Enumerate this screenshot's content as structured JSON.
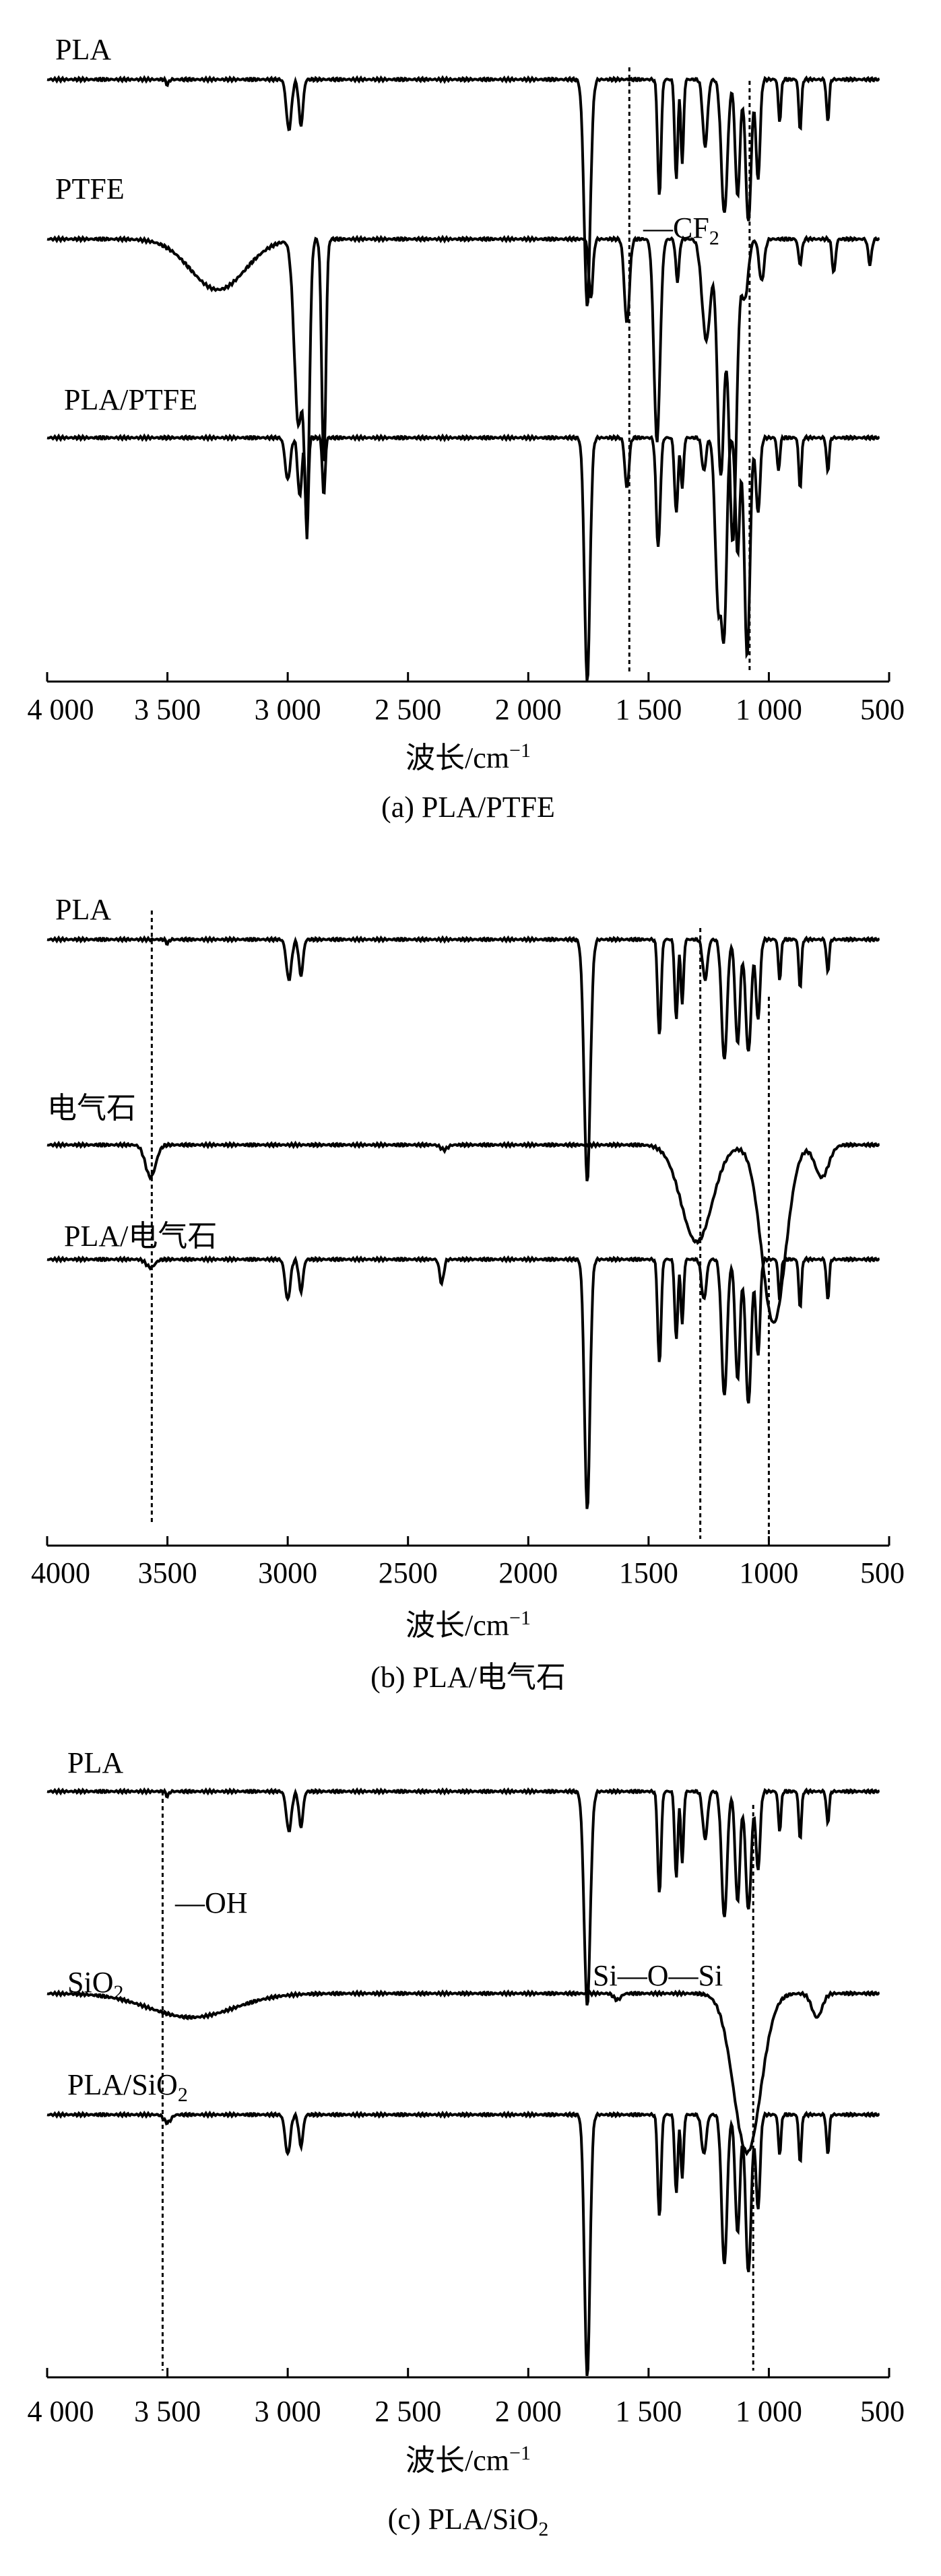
{
  "chart_data": [
    {
      "type": "line",
      "xlim": [
        4000,
        500
      ],
      "x_reversed": true,
      "xlabel_main": "波长/cm",
      "xlabel_sup": "−1",
      "xticks": [
        4000,
        3500,
        3000,
        2500,
        2000,
        1500,
        1000,
        500
      ],
      "xtick_labels": [
        "4 000",
        "3 500",
        "3 000",
        "2 500",
        "2 000",
        "1 500",
        "1 000",
        "500"
      ],
      "caption_parts": [
        "(a) PLA/PTFE"
      ],
      "y_axis": "none",
      "series_labels": [
        "PLA",
        "PTFE",
        "PLA/PTFE"
      ],
      "series": [
        {
          "name": "PLA",
          "baseline": 0.05,
          "peaks": [
            [
              3500,
              0.006,
              8
            ],
            [
              2995,
              0.06,
              15
            ],
            [
              2945,
              0.055,
              12
            ],
            [
              1755,
              0.27,
              18
            ],
            [
              1455,
              0.14,
              10
            ],
            [
              1385,
              0.12,
              9
            ],
            [
              1360,
              0.1,
              8
            ],
            [
              1265,
              0.08,
              14
            ],
            [
              1185,
              0.16,
              18
            ],
            [
              1130,
              0.14,
              14
            ],
            [
              1085,
              0.17,
              16
            ],
            [
              1045,
              0.12,
              12
            ],
            [
              955,
              0.05,
              8
            ],
            [
              870,
              0.06,
              8
            ],
            [
              755,
              0.05,
              8
            ]
          ]
        },
        {
          "name": "PTFE",
          "baseline": 0.05,
          "peaks": [
            [
              3290,
              0.06,
              160
            ],
            [
              2955,
              0.22,
              25
            ],
            [
              2920,
              0.3,
              15
            ],
            [
              2850,
              0.27,
              12
            ],
            [
              1740,
              0.07,
              12
            ],
            [
              1590,
              0.1,
              15
            ],
            [
              1465,
              0.24,
              18
            ],
            [
              1380,
              0.05,
              10
            ],
            [
              1260,
              0.12,
              25
            ],
            [
              1200,
              0.28,
              20
            ],
            [
              1150,
              0.36,
              22
            ],
            [
              1100,
              0.07,
              20
            ],
            [
              1030,
              0.05,
              15
            ],
            [
              870,
              0.03,
              10
            ],
            [
              730,
              0.04,
              10
            ],
            [
              580,
              0.03,
              10
            ]
          ]
        },
        {
          "name": "PLA/PTFE",
          "baseline": 0.06,
          "peaks": [
            [
              3000,
              0.05,
              15
            ],
            [
              2950,
              0.07,
              12
            ],
            [
              2920,
              0.12,
              8
            ],
            [
              2850,
              0.07,
              8
            ],
            [
              1755,
              0.29,
              16
            ],
            [
              1590,
              0.06,
              12
            ],
            [
              1460,
              0.13,
              12
            ],
            [
              1385,
              0.09,
              10
            ],
            [
              1360,
              0.06,
              8
            ],
            [
              1270,
              0.04,
              12
            ],
            [
              1210,
              0.2,
              18
            ],
            [
              1185,
              0.21,
              14
            ],
            [
              1130,
              0.14,
              12
            ],
            [
              1090,
              0.26,
              16
            ],
            [
              1045,
              0.09,
              12
            ],
            [
              960,
              0.04,
              8
            ],
            [
              870,
              0.06,
              8
            ],
            [
              755,
              0.04,
              8
            ]
          ]
        }
      ],
      "reference_lines": [
        1580,
        1080
      ],
      "annotations_parts": [
        "—CF",
        "2"
      ]
    },
    {
      "type": "line",
      "xlim": [
        4000,
        500
      ],
      "x_reversed": true,
      "xlabel_main": "波长/cm",
      "xlabel_sup": "−1",
      "xticks": [
        4000,
        3500,
        3000,
        2500,
        2000,
        1500,
        1000,
        500
      ],
      "xtick_labels": [
        "4000",
        "3500",
        "3000",
        "2500",
        "2000",
        "1500",
        "1000",
        "500"
      ],
      "caption_parts": [
        "(b) PLA/电气石"
      ],
      "y_axis": "none",
      "series_labels": [
        "PLA",
        "电气石",
        "PLA/电气石"
      ],
      "series": [
        {
          "name": "PLA",
          "baseline": 0.05,
          "peaks": [
            [
              3500,
              0.005,
              8
            ],
            [
              2995,
              0.05,
              15
            ],
            [
              2945,
              0.045,
              12
            ],
            [
              1755,
              0.3,
              18
            ],
            [
              1455,
              0.12,
              10
            ],
            [
              1385,
              0.1,
              9
            ],
            [
              1360,
              0.08,
              8
            ],
            [
              1265,
              0.05,
              14
            ],
            [
              1185,
              0.15,
              16
            ],
            [
              1130,
              0.13,
              14
            ],
            [
              1085,
              0.14,
              16
            ],
            [
              1045,
              0.1,
              12
            ],
            [
              955,
              0.05,
              8
            ],
            [
              870,
              0.06,
              8
            ],
            [
              755,
              0.04,
              8
            ]
          ]
        },
        {
          "name": "电气石",
          "baseline": 0.05,
          "peaks": [
            [
              3570,
              0.04,
              30
            ],
            [
              2350,
              0.006,
              20
            ],
            [
              1300,
              0.12,
              90
            ],
            [
              980,
              0.22,
              70
            ],
            [
              780,
              0.04,
              40
            ]
          ]
        },
        {
          "name": "PLA/电气石",
          "baseline": 0.05,
          "peaks": [
            [
              3570,
              0.01,
              25
            ],
            [
              3000,
              0.05,
              15
            ],
            [
              2945,
              0.04,
              12
            ],
            [
              2360,
              0.03,
              12
            ],
            [
              1755,
              0.31,
              16
            ],
            [
              1455,
              0.13,
              10
            ],
            [
              1385,
              0.1,
              9
            ],
            [
              1360,
              0.08,
              8
            ],
            [
              1270,
              0.05,
              14
            ],
            [
              1185,
              0.17,
              16
            ],
            [
              1130,
              0.15,
              14
            ],
            [
              1085,
              0.18,
              16
            ],
            [
              1045,
              0.12,
              12
            ],
            [
              955,
              0.05,
              8
            ],
            [
              870,
              0.06,
              8
            ],
            [
              755,
              0.05,
              8
            ]
          ]
        }
      ],
      "reference_lines": [
        3565,
        1285,
        1000
      ],
      "annotations_parts": []
    },
    {
      "type": "line",
      "xlim": [
        4000,
        500
      ],
      "x_reversed": true,
      "xlabel_main": "波长/cm",
      "xlabel_sup": "−1",
      "xticks": [
        4000,
        3500,
        3000,
        2500,
        2000,
        1500,
        1000,
        500
      ],
      "xtick_labels": [
        "4 000",
        "3 500",
        "3 000",
        "2 500",
        "2 000",
        "1 500",
        "1 000",
        "500"
      ],
      "caption_parts": [
        "(c) PLA/SiO",
        "2"
      ],
      "y_axis": "none",
      "series_labels": [
        [
          "PLA"
        ],
        [
          "SiO",
          "2"
        ],
        [
          "PLA/SiO",
          "2"
        ]
      ],
      "series": [
        {
          "name": "PLA",
          "baseline": 0.05,
          "peaks": [
            [
              3500,
              0.006,
              8
            ],
            [
              2995,
              0.05,
              15
            ],
            [
              2945,
              0.045,
              12
            ],
            [
              1755,
              0.27,
              18
            ],
            [
              1455,
              0.13,
              10
            ],
            [
              1385,
              0.11,
              9
            ],
            [
              1360,
              0.09,
              8
            ],
            [
              1265,
              0.06,
              14
            ],
            [
              1185,
              0.16,
              16
            ],
            [
              1130,
              0.14,
              14
            ],
            [
              1085,
              0.15,
              16
            ],
            [
              1045,
              0.1,
              12
            ],
            [
              955,
              0.05,
              8
            ],
            [
              870,
              0.06,
              8
            ],
            [
              755,
              0.04,
              8
            ]
          ]
        },
        {
          "name": "SiO2",
          "baseline": 0.05,
          "peaks": [
            [
              3400,
              0.03,
              250
            ],
            [
              1630,
              0.008,
              20
            ],
            [
              1090,
              0.2,
              80
            ],
            [
              800,
              0.03,
              30
            ]
          ]
        },
        {
          "name": "PLA/SiO2",
          "baseline": 0.05,
          "peaks": [
            [
              3500,
              0.01,
              20
            ],
            [
              3000,
              0.05,
              15
            ],
            [
              2945,
              0.04,
              12
            ],
            [
              1755,
              0.33,
              16
            ],
            [
              1455,
              0.13,
              10
            ],
            [
              1385,
              0.1,
              9
            ],
            [
              1360,
              0.08,
              8
            ],
            [
              1270,
              0.05,
              14
            ],
            [
              1185,
              0.19,
              16
            ],
            [
              1130,
              0.15,
              14
            ],
            [
              1085,
              0.2,
              16
            ],
            [
              1045,
              0.12,
              12
            ],
            [
              955,
              0.05,
              8
            ],
            [
              870,
              0.06,
              8
            ],
            [
              755,
              0.05,
              8
            ]
          ]
        }
      ],
      "reference_lines": [
        3520,
        1065
      ],
      "annotations_parts": [
        "—OH",
        "Si—O—Si"
      ]
    }
  ],
  "colors": {
    "ink": "#000000",
    "background": "#ffffff"
  }
}
